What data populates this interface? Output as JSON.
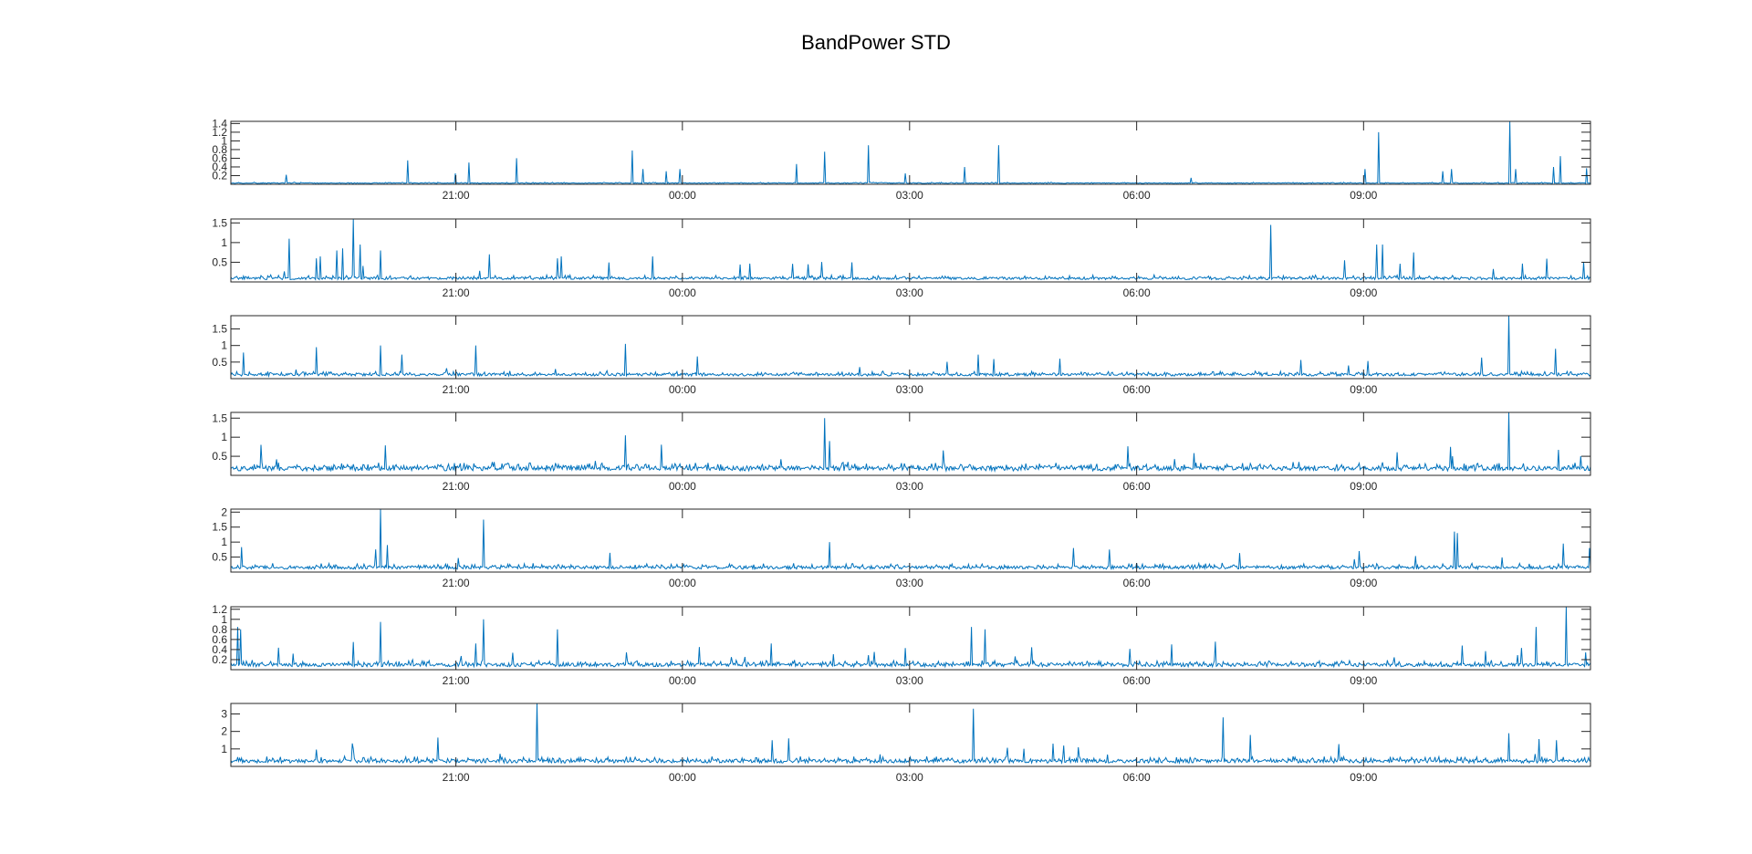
{
  "title": "BandPower STD",
  "colors": {
    "series": "#0072BD",
    "axes": "#262626",
    "background": "#ffffff"
  },
  "chart_data": [
    {
      "type": "line",
      "name": "",
      "ylim": [
        0,
        1.45
      ],
      "yticks": [
        0.2,
        0.4,
        0.6,
        0.8,
        1,
        1.2,
        1.4
      ],
      "ytick_labels": [
        "0.2",
        "0.4",
        "0.6",
        "0.8",
        "1",
        "1.2",
        "1.4"
      ],
      "xticks": [
        "21:00",
        "00:00",
        "03:00",
        "06:00",
        "09:00"
      ],
      "baseline": 0.02,
      "noise": 0.015,
      "spike_rate": 0.002,
      "peaks": [
        [
          0.13,
          0.55
        ],
        [
          0.165,
          0.25
        ],
        [
          0.175,
          0.5
        ],
        [
          0.21,
          0.6
        ],
        [
          0.295,
          0.78
        ],
        [
          0.303,
          0.35
        ],
        [
          0.32,
          0.3
        ],
        [
          0.33,
          0.35
        ],
        [
          0.437,
          0.75
        ],
        [
          0.469,
          0.9
        ],
        [
          0.496,
          0.25
        ],
        [
          0.54,
          0.4
        ],
        [
          0.565,
          0.9
        ],
        [
          0.706,
          0.15
        ],
        [
          0.834,
          0.35
        ],
        [
          0.844,
          1.2
        ],
        [
          0.891,
          0.3
        ],
        [
          0.898,
          0.35
        ],
        [
          0.941,
          1.45
        ],
        [
          0.945,
          0.35
        ],
        [
          0.973,
          0.4
        ],
        [
          0.978,
          0.65
        ]
      ]
    },
    {
      "type": "line",
      "name": "",
      "ylim": [
        0,
        1.6
      ],
      "yticks": [
        0.5,
        1,
        1.5
      ],
      "ytick_labels": [
        "0.5",
        "1",
        "1.5"
      ],
      "xticks": [
        "21:00",
        "00:00",
        "03:00",
        "06:00",
        "09:00"
      ],
      "baseline": 0.06,
      "noise": 0.06,
      "spike_rate": 0.01,
      "peaks": [
        [
          0.043,
          1.1
        ],
        [
          0.063,
          0.6
        ],
        [
          0.066,
          0.65
        ],
        [
          0.078,
          0.8
        ],
        [
          0.082,
          0.85
        ],
        [
          0.09,
          1.6
        ],
        [
          0.095,
          0.95
        ],
        [
          0.11,
          0.8
        ],
        [
          0.19,
          0.7
        ],
        [
          0.24,
          0.6
        ],
        [
          0.243,
          0.65
        ],
        [
          0.31,
          0.65
        ],
        [
          0.765,
          1.45
        ],
        [
          0.843,
          0.95
        ],
        [
          0.847,
          0.95
        ],
        [
          0.87,
          0.75
        ],
        [
          0.995,
          0.5
        ]
      ]
    },
    {
      "type": "line",
      "name": "",
      "ylim": [
        0,
        1.9
      ],
      "yticks": [
        0.5,
        1,
        1.5
      ],
      "ytick_labels": [
        "0.5",
        "1",
        "1.5"
      ],
      "xticks": [
        "21:00",
        "00:00",
        "03:00",
        "06:00",
        "09:00"
      ],
      "baseline": 0.08,
      "noise": 0.08,
      "spike_rate": 0.012,
      "peaks": [
        [
          0.063,
          0.95
        ],
        [
          0.11,
          1.0
        ],
        [
          0.18,
          1.0
        ],
        [
          0.29,
          1.05
        ],
        [
          0.61,
          0.6
        ],
        [
          0.94,
          1.9
        ],
        [
          0.974,
          0.9
        ]
      ]
    },
    {
      "type": "line",
      "name": "",
      "ylim": [
        0,
        1.65
      ],
      "yticks": [
        0.5,
        1,
        1.5
      ],
      "ytick_labels": [
        "0.5",
        "1",
        "1.5"
      ],
      "xticks": [
        "21:00",
        "00:00",
        "03:00",
        "06:00",
        "09:00"
      ],
      "baseline": 0.12,
      "noise": 0.12,
      "spike_rate": 0.02,
      "peaks": [
        [
          0.022,
          0.8
        ],
        [
          0.29,
          1.05
        ],
        [
          0.437,
          1.5
        ],
        [
          0.44,
          0.9
        ],
        [
          0.94,
          1.65
        ]
      ]
    },
    {
      "type": "line",
      "name": "",
      "ylim": [
        0,
        2.1
      ],
      "yticks": [
        0.5,
        1,
        1.5,
        2
      ],
      "ytick_labels": [
        "0.5",
        "1",
        "1.5",
        "2"
      ],
      "xticks": [
        "21:00",
        "00:00",
        "03:00",
        "06:00",
        "09:00"
      ],
      "baseline": 0.1,
      "noise": 0.1,
      "spike_rate": 0.014,
      "peaks": [
        [
          0.11,
          2.1
        ],
        [
          0.115,
          0.9
        ],
        [
          0.186,
          1.75
        ],
        [
          0.44,
          1.0
        ],
        [
          0.62,
          0.8
        ],
        [
          0.83,
          0.7
        ],
        [
          0.9,
          1.35
        ],
        [
          0.902,
          1.3
        ],
        [
          0.98,
          0.95
        ]
      ]
    },
    {
      "type": "line",
      "name": "",
      "ylim": [
        0,
        1.25
      ],
      "yticks": [
        0.2,
        0.4,
        0.6,
        0.8,
        1,
        1.2
      ],
      "ytick_labels": [
        "0.2",
        "0.4",
        "0.6",
        "0.8",
        "1",
        "1.2"
      ],
      "xticks": [
        "21:00",
        "00:00",
        "03:00",
        "06:00",
        "09:00"
      ],
      "baseline": 0.06,
      "noise": 0.07,
      "spike_rate": 0.014,
      "peaks": [
        [
          0.005,
          0.85
        ],
        [
          0.007,
          0.8
        ],
        [
          0.09,
          0.55
        ],
        [
          0.11,
          0.95
        ],
        [
          0.186,
          1.0
        ],
        [
          0.24,
          0.8
        ],
        [
          0.545,
          0.85
        ],
        [
          0.555,
          0.8
        ],
        [
          0.96,
          0.85
        ],
        [
          0.982,
          1.25
        ]
      ]
    },
    {
      "type": "line",
      "name": "",
      "ylim": [
        0,
        3.6
      ],
      "yticks": [
        1,
        2,
        3
      ],
      "ytick_labels": [
        "1",
        "2",
        "3"
      ],
      "xticks": [
        "21:00",
        "00:00",
        "03:00",
        "06:00",
        "09:00"
      ],
      "baseline": 0.2,
      "noise": 0.2,
      "spike_rate": 0.012,
      "peaks": [
        [
          0.09,
          1.0
        ],
        [
          0.152,
          1.65
        ],
        [
          0.225,
          3.6
        ],
        [
          0.398,
          1.5
        ],
        [
          0.41,
          1.6
        ],
        [
          0.546,
          3.3
        ],
        [
          0.73,
          2.8
        ],
        [
          0.75,
          1.8
        ],
        [
          0.94,
          1.9
        ],
        [
          0.975,
          1.5
        ]
      ]
    }
  ]
}
